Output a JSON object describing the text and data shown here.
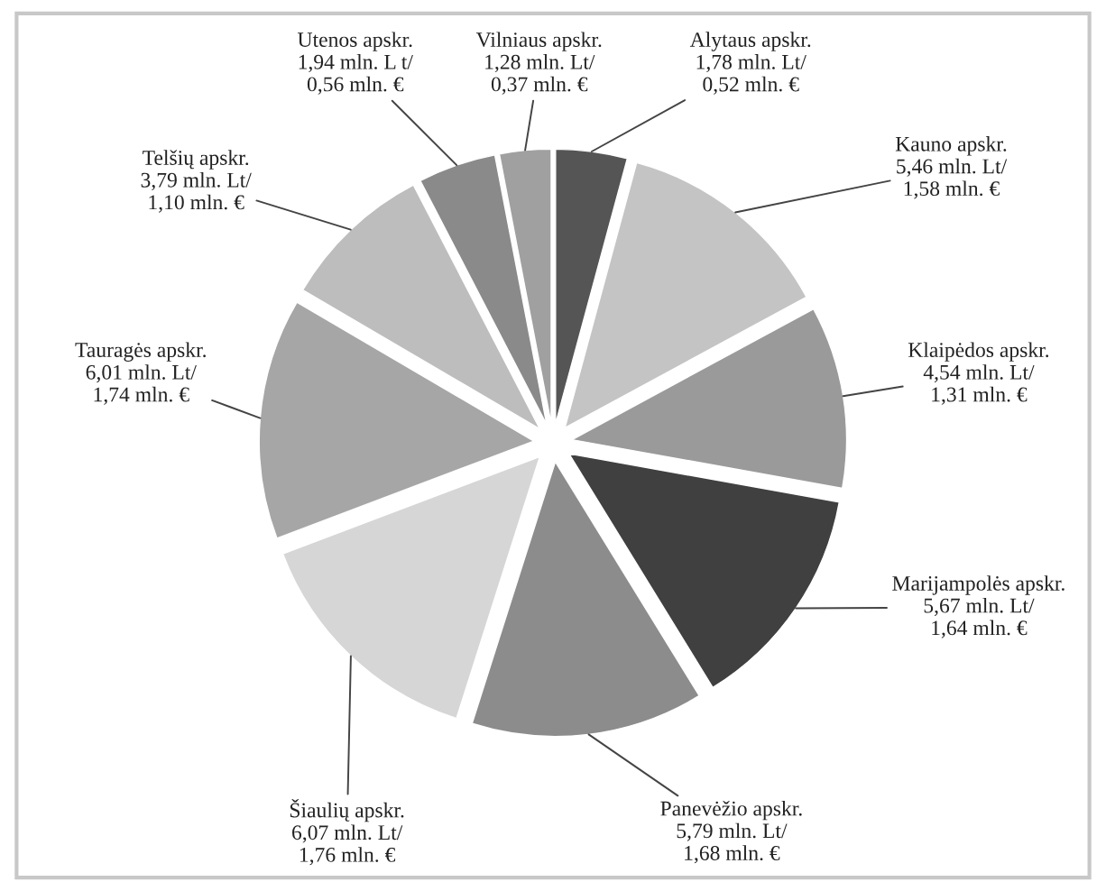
{
  "chart_data": {
    "type": "pie",
    "categories": [
      "Alytaus apskr.",
      "Kauno apskr.",
      "Klaipėdos apskr.",
      "Marijampolės apskr.",
      "Panevėžio apskr.",
      "Šiaulių apskr.",
      "Tauragės apskr.",
      "Telšių apskr.",
      "Utenos apskr.",
      "Vilniaus apskr."
    ],
    "values": [
      1.78,
      5.46,
      4.54,
      5.67,
      5.79,
      6.07,
      6.01,
      3.79,
      1.94,
      1.28
    ],
    "value_labels": [
      "1,78 mln. Lt/\n0,52 mln. €",
      "5,46 mln. Lt/\n1,58 mln. €",
      "4,54 mln. Lt/\n1,31 mln. €",
      "5,67 mln. Lt/\n1,64 mln. €",
      "5,79 mln. Lt/\n1,68 mln. €",
      "6,07 mln. Lt/\n1,76 mln. €",
      "6,01 mln. Lt/\n1,74 mln. €",
      "3,79 mln. Lt/\n1,10 mln. €",
      "1,94 mln. L t/\n0,56 mln. €",
      "1,28 mln. Lt/\n0,37 mln. €"
    ],
    "colors": [
      "#555555",
      "#c4c4c4",
      "#9a9a9a",
      "#404040",
      "#8c8c8c",
      "#d6d6d6",
      "#a6a6a6",
      "#bdbdbd",
      "#8a8a8a",
      "#a0a0a0"
    ],
    "legend": false
  }
}
